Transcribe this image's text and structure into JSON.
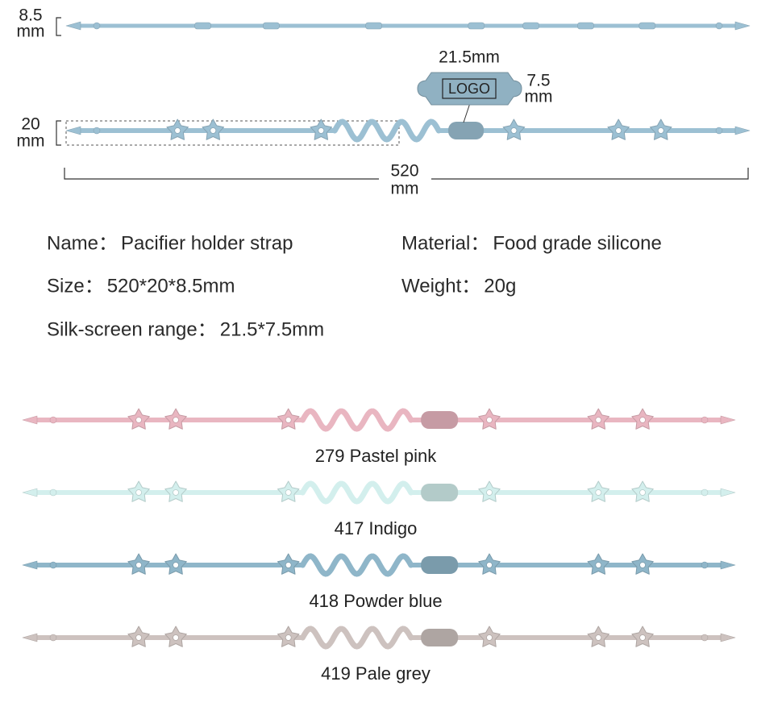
{
  "dimensions": {
    "thickness_value": "8.5",
    "thickness_unit": "mm",
    "width_value": "20",
    "width_unit": "mm",
    "logo_width": "21.5mm",
    "logo_text": "LOGO",
    "logo_height_value": "7.5",
    "logo_height_unit": "mm",
    "length_value": "520",
    "length_unit": "mm",
    "color": "#9cc0d3"
  },
  "specs": [
    {
      "label": "Name：",
      "value": "Pacifier holder strap"
    },
    {
      "label": "Material：",
      "value": "Food grade silicone"
    },
    {
      "label": "Size：",
      "value": "520*20*8.5mm"
    },
    {
      "label": "Weight：",
      "value": "20g"
    },
    {
      "label": "Silk-screen range：",
      "value": "21.5*7.5mm"
    }
  ],
  "variants": [
    {
      "label": "279 Pastel pink",
      "color": "#e9b6c1"
    },
    {
      "label": "417 Indigo",
      "color": "#d3efed"
    },
    {
      "label": "418 Powder blue",
      "color": "#8fb6c9"
    },
    {
      "label": "419 Pale grey",
      "color": "#cdc2bf"
    }
  ]
}
